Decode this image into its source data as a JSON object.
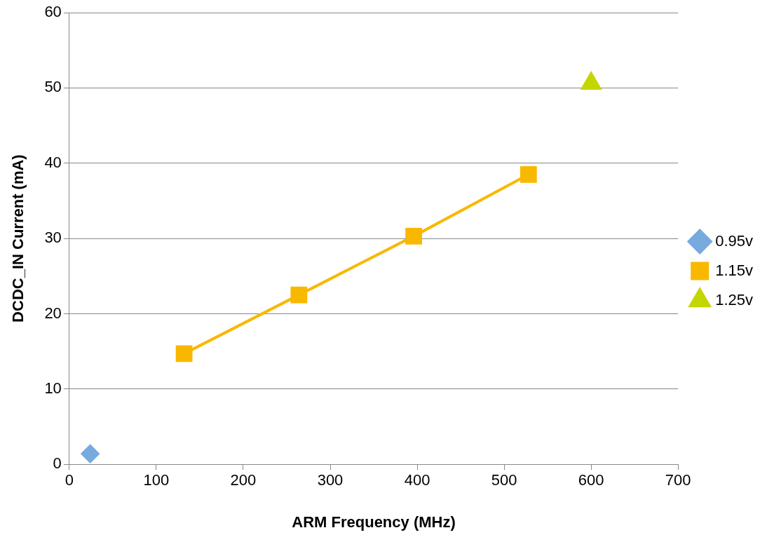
{
  "chart_data": {
    "type": "line",
    "xlabel": "ARM Frequency (MHz)",
    "ylabel": "DCDC_IN Current (mA)",
    "xlim": [
      0,
      700
    ],
    "xticks": [
      0,
      100,
      200,
      300,
      400,
      500,
      600,
      700
    ],
    "ylim": [
      0,
      60
    ],
    "yticks": [
      0,
      10,
      20,
      30,
      40,
      50,
      60
    ],
    "grid": "y",
    "legend": "right",
    "series": [
      {
        "name": "0.95v",
        "color": "#77aadd",
        "marker": "diamond",
        "x": [
          24
        ],
        "values": [
          1.4
        ]
      },
      {
        "name": "1.15v",
        "color": "#f9b800",
        "marker": "square",
        "x": [
          132,
          264,
          396,
          528
        ],
        "values": [
          14.7,
          22.5,
          30.3,
          38.5
        ]
      },
      {
        "name": "1.25v",
        "color": "#c4d600",
        "marker": "triangle",
        "x": [
          600
        ],
        "values": [
          50.6
        ]
      }
    ]
  }
}
